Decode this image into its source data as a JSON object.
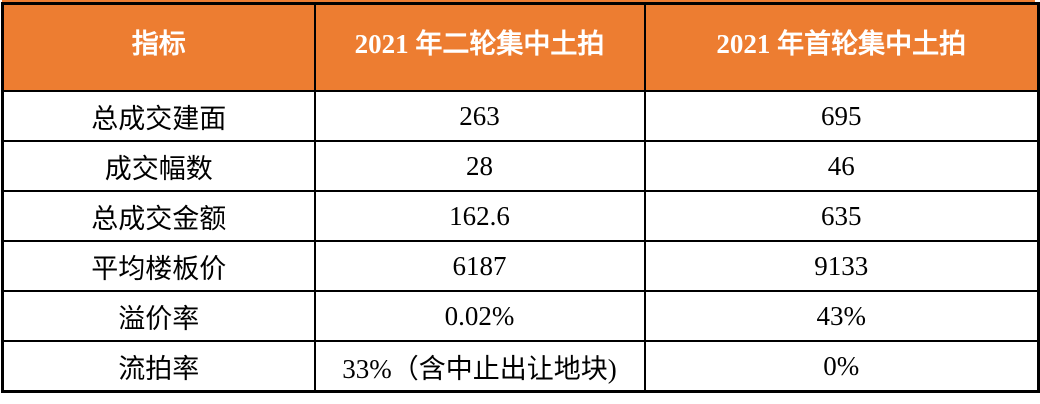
{
  "chart_data": {
    "type": "table",
    "columns": [
      "指标",
      "2021 年二轮集中土拍",
      "2021 年首轮集中土拍"
    ],
    "rows": [
      [
        "总成交建面",
        "263",
        "695"
      ],
      [
        "成交幅数",
        "28",
        "46"
      ],
      [
        "总成交金额",
        "162.6",
        "635"
      ],
      [
        "平均楼板价",
        "6187",
        "9133"
      ],
      [
        "溢价率",
        "0.02%",
        "43%"
      ],
      [
        "流拍率",
        "33%（含中止出让地块)",
        "0%"
      ]
    ],
    "layout": {
      "grid": "all-borders",
      "header_position": "top",
      "text_align": "center"
    },
    "colors": {
      "header_bg": "#ED7D31",
      "header_text": "#FFFFFF",
      "body_bg": "#FFFFFF",
      "body_text": "#000000",
      "border": "#000000"
    }
  }
}
